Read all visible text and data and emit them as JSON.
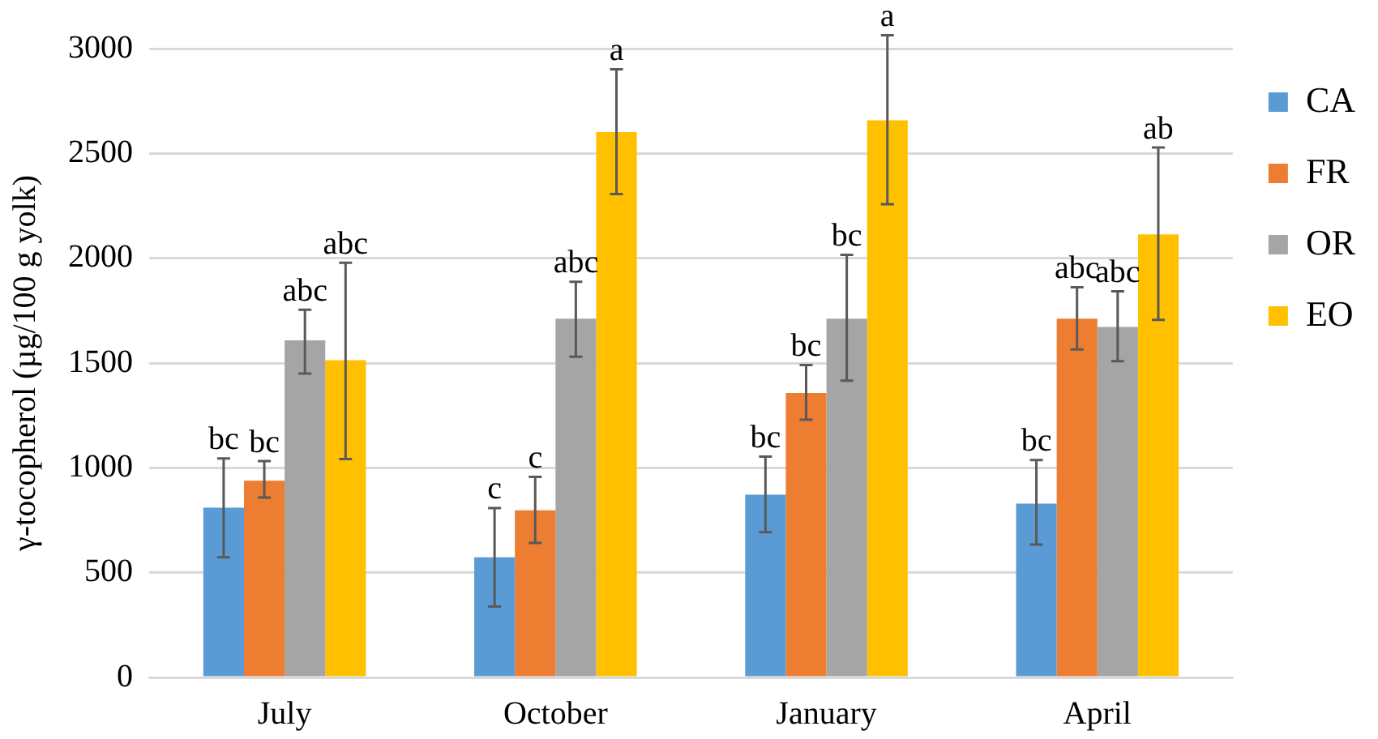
{
  "chart_data": {
    "type": "bar",
    "ylabel": "γ-tocopherol (µg/100 g yolk)",
    "categories": [
      "July",
      "October",
      "January",
      "April"
    ],
    "series": [
      {
        "name": "CA",
        "color": "#5b9bd5",
        "values": [
          810,
          573,
          872,
          829
        ],
        "errors": [
          [
            573,
            1045
          ],
          [
            338,
            808
          ],
          [
            693,
            1053
          ],
          [
            634,
            1037
          ]
        ],
        "value_labels": [
          "bc",
          "c",
          "bc",
          "bc"
        ]
      },
      {
        "name": "FR",
        "color": "#ed7d31",
        "values": [
          938,
          797,
          1357,
          1712
        ],
        "errors": [
          [
            858,
            1032
          ],
          [
            642,
            957
          ],
          [
            1229,
            1490
          ],
          [
            1565,
            1861
          ]
        ],
        "value_labels": [
          "bc",
          "c",
          "bc",
          "abc"
        ]
      },
      {
        "name": "OR",
        "color": "#a5a5a5",
        "values": [
          1608,
          1712,
          1712,
          1672
        ],
        "errors": [
          [
            1450,
            1754
          ],
          [
            1530,
            1888
          ],
          [
            1416,
            2016
          ],
          [
            1509,
            1842
          ]
        ],
        "value_labels": [
          "abc",
          "abc",
          "bc",
          "abc"
        ]
      },
      {
        "name": "EO",
        "color": "#ffc000",
        "values": [
          1514,
          2602,
          2658,
          2114
        ],
        "errors": [
          [
            1042,
            1978
          ],
          [
            2306,
            2901
          ],
          [
            2258,
            3064
          ],
          [
            1706,
            2528
          ]
        ],
        "value_labels": [
          "abc",
          "a",
          "a",
          "ab"
        ]
      }
    ],
    "ylim": [
      0,
      3000
    ],
    "yticks": [
      0,
      500,
      1000,
      1500,
      2000,
      2500,
      3000
    ],
    "grid": "y",
    "legend": "right"
  }
}
